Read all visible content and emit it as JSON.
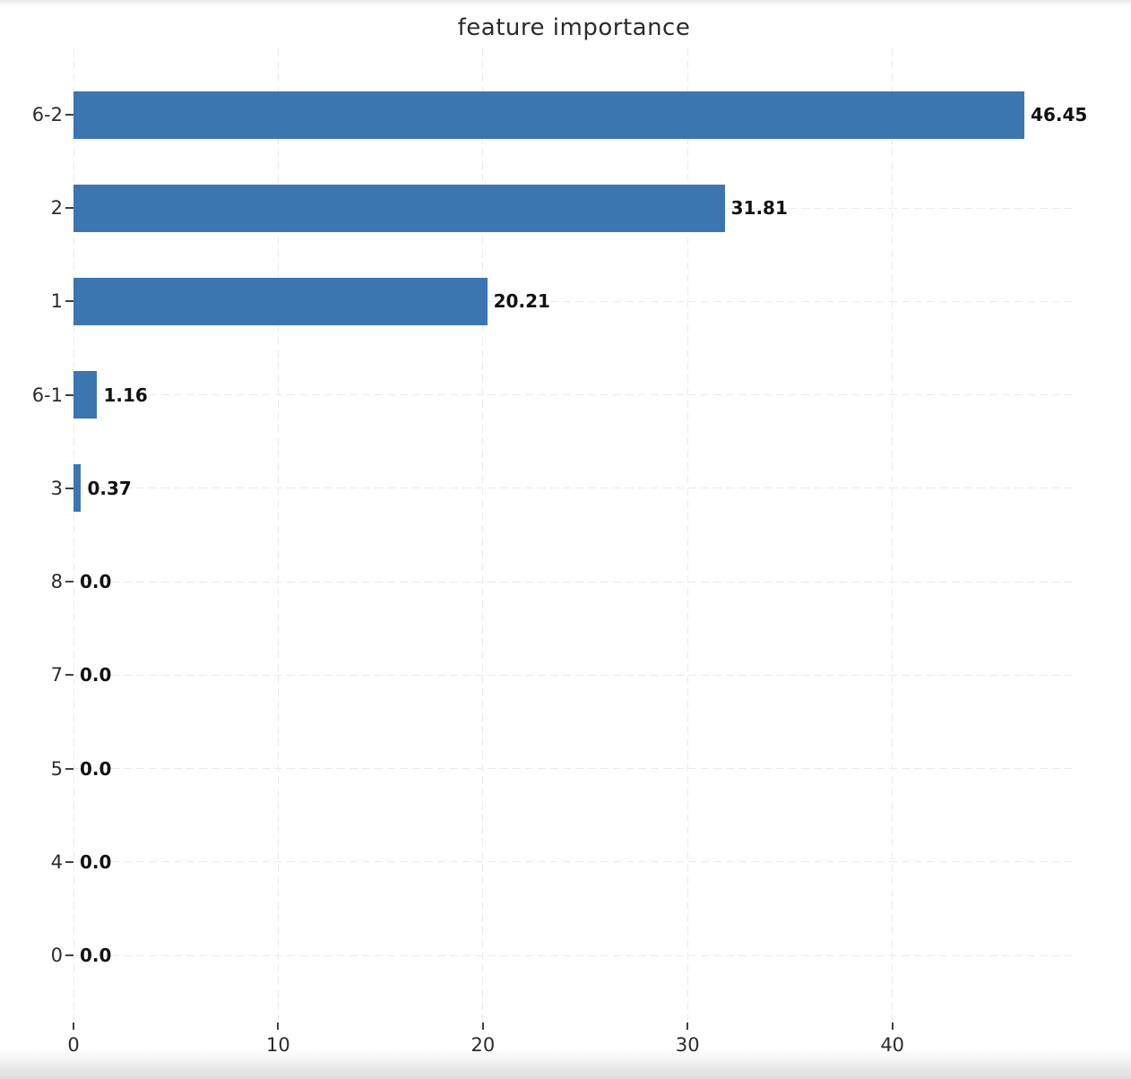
{
  "chart_data": {
    "type": "bar",
    "orientation": "horizontal",
    "title": "feature importance",
    "categories": [
      "6-2",
      "2",
      "1",
      "6-1",
      "3",
      "8",
      "7",
      "5",
      "4",
      "0"
    ],
    "values": [
      46.45,
      31.81,
      20.21,
      1.16,
      0.37,
      0.0,
      0.0,
      0.0,
      0.0,
      0.0
    ],
    "value_labels": [
      "46.45",
      "31.81",
      "20.21",
      "1.16",
      "0.37",
      "0.0",
      "0.0",
      "0.0",
      "0.0",
      "0.0"
    ],
    "x_ticks": [
      0,
      10,
      20,
      30,
      40
    ],
    "x_tick_labels": [
      "0",
      "10",
      "20",
      "30",
      "40"
    ],
    "xlim": [
      0,
      48.9
    ],
    "xlabel": "",
    "ylabel": "",
    "grid": true,
    "grid_style": "dashed",
    "legend": null,
    "colors": {
      "bar": "#3c76b0",
      "text": "#2b2b2b",
      "value_label": "#111111",
      "grid": "#ebebeb",
      "tick": "#404040",
      "background": "#ffffff"
    }
  }
}
